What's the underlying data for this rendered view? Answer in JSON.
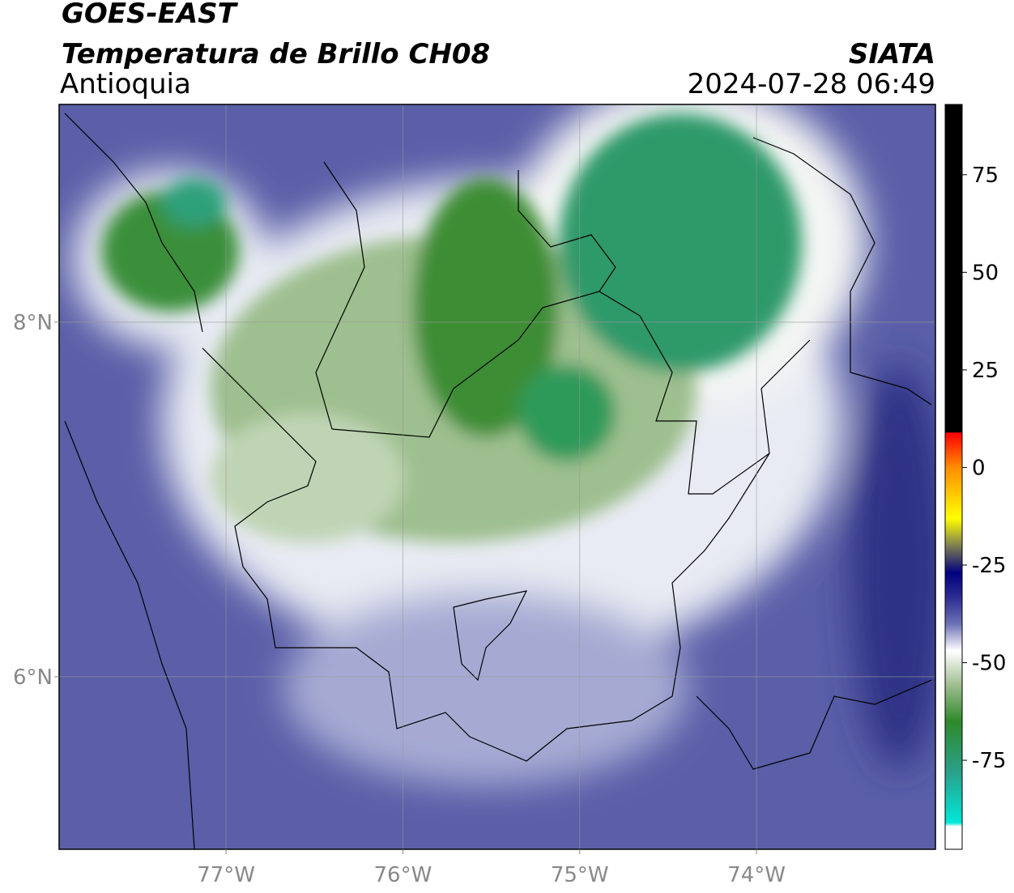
{
  "header": {
    "title": "GOES-EAST",
    "subtitle": "Temperatura de Brillo CH08",
    "region": "Antioquia",
    "source": "SIATA",
    "datetime": "2024-07-28 06:49"
  },
  "map": {
    "xlim": [
      -77.944,
      -72.988
    ],
    "ylim": [
      5.027,
      9.228
    ],
    "xticks": [
      {
        "value": -77,
        "label": "77°W"
      },
      {
        "value": -76,
        "label": "76°W"
      },
      {
        "value": -75,
        "label": "75°W"
      },
      {
        "value": -74,
        "label": "74°W"
      }
    ],
    "yticks": [
      {
        "value": 6,
        "label": "6°N"
      },
      {
        "value": 8,
        "label": "8°N"
      }
    ],
    "grid": true
  },
  "colorbar": {
    "lim": [
      -97.8,
      93
    ],
    "ticks": [
      75,
      50,
      25,
      0,
      -25,
      -50,
      -75
    ],
    "stops": [
      {
        "value": 93,
        "color": "#000000"
      },
      {
        "value": 9,
        "color": "#000000"
      },
      {
        "value": 8.9,
        "color": "#ff0000"
      },
      {
        "value": 0,
        "color": "#ff8c00"
      },
      {
        "value": -13,
        "color": "#ffff00"
      },
      {
        "value": -20,
        "color": "#7f7f50"
      },
      {
        "value": -27,
        "color": "#000080"
      },
      {
        "value": -33,
        "color": "#2a2a90"
      },
      {
        "value": -40,
        "color": "#6b70b5"
      },
      {
        "value": -47,
        "color": "#ffffff"
      },
      {
        "value": -56,
        "color": "#9cbc8c"
      },
      {
        "value": -65,
        "color": "#2e8a2a"
      },
      {
        "value": -78,
        "color": "#2aa08a"
      },
      {
        "value": -91,
        "color": "#00e8d8"
      },
      {
        "value": -92,
        "color": "#ffffff"
      },
      {
        "value": -97.8,
        "color": "#ffffff"
      }
    ]
  }
}
